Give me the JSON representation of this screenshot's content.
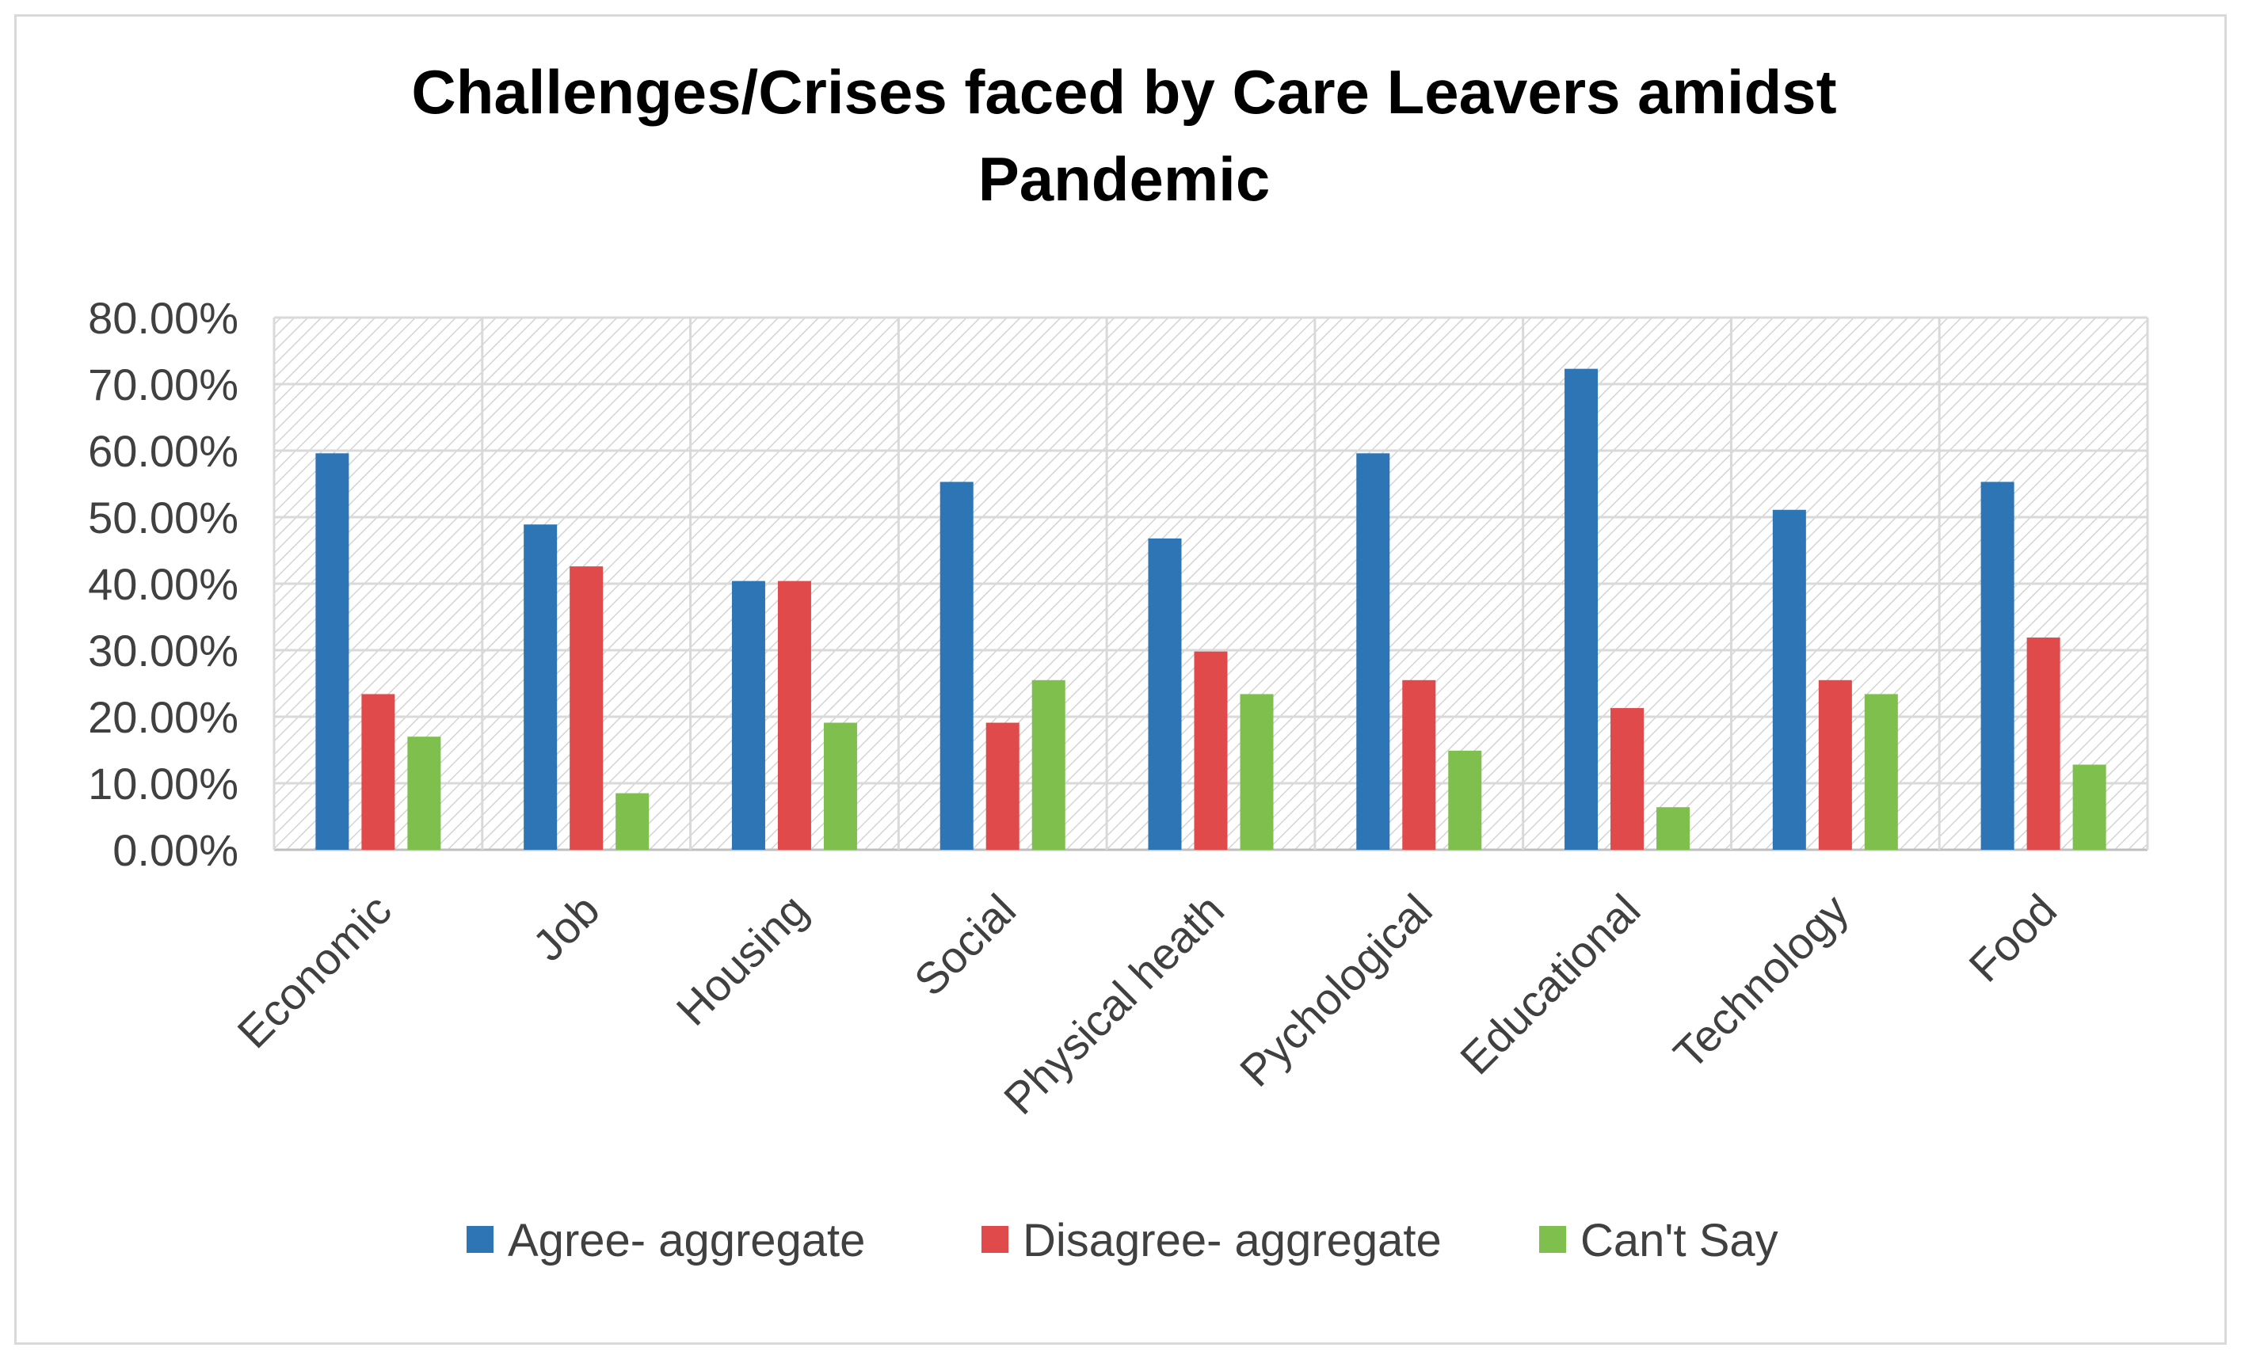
{
  "chart_data": {
    "type": "bar",
    "title_lines": [
      "Challenges/Crises faced by Care Leavers amidst",
      "Pandemic"
    ],
    "categories": [
      "Economic",
      "Job",
      "Housing",
      "Social",
      "Physical heath",
      "Pychological",
      "Educational",
      "Technology",
      "Food"
    ],
    "series": [
      {
        "name": "Agree- aggregate",
        "color": "#2e75b6",
        "values": [
          59.6,
          48.9,
          40.4,
          55.3,
          46.8,
          59.6,
          72.3,
          51.1,
          55.3
        ]
      },
      {
        "name": "Disagree- aggregate",
        "color": "#e04a4a",
        "values": [
          23.4,
          42.6,
          40.4,
          19.1,
          29.8,
          25.5,
          21.3,
          25.5,
          31.9
        ]
      },
      {
        "name": "Can't Say",
        "color": "#7fbf4d",
        "values": [
          17.0,
          8.5,
          19.1,
          25.5,
          23.4,
          14.9,
          6.4,
          23.4,
          12.8
        ]
      }
    ],
    "ylim": [
      0,
      80
    ],
    "yticks": [
      "0.00%",
      "10.00%",
      "20.00%",
      "30.00%",
      "40.00%",
      "50.00%",
      "60.00%",
      "70.00%",
      "80.00%"
    ],
    "xlabel": "",
    "ylabel": "",
    "grid": true,
    "legend_position": "bottom"
  }
}
